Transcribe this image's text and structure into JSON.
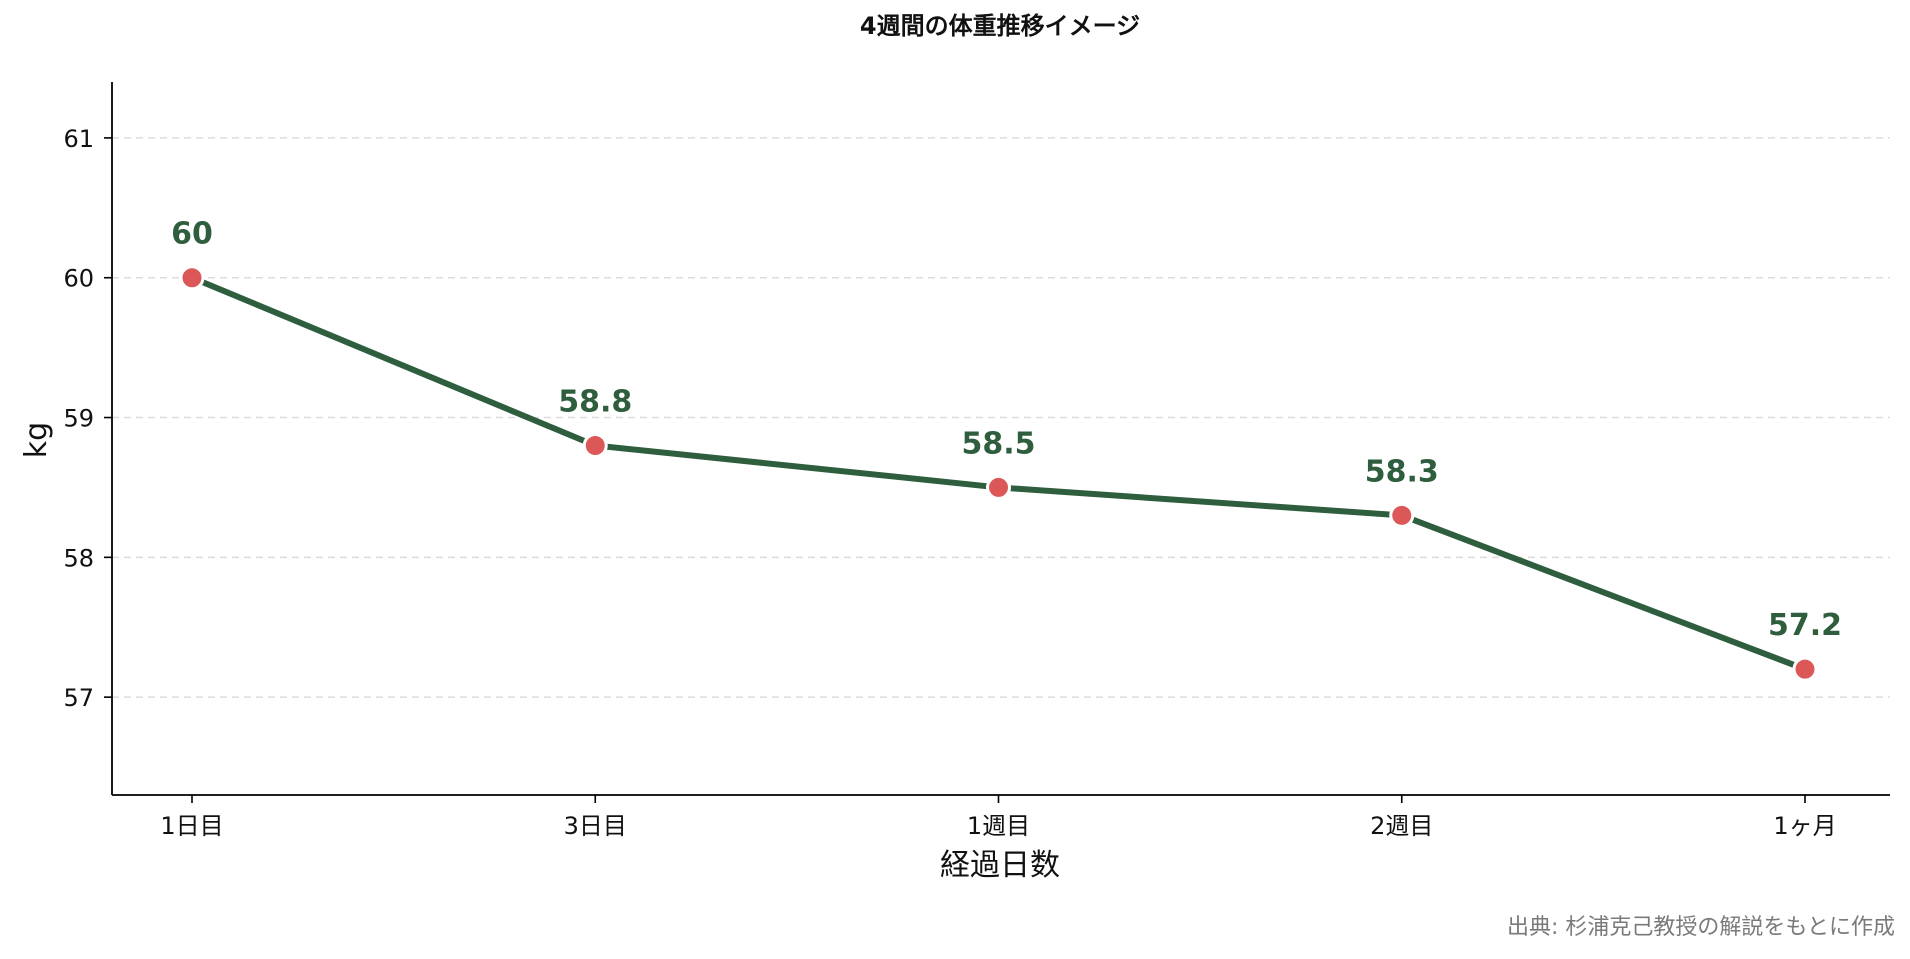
{
  "chart_data": {
    "type": "line",
    "title": "4週間の体重推移イメージ",
    "xlabel": "経過日数",
    "ylabel": "kg",
    "categories": [
      "1日目",
      "3日目",
      "1週目",
      "2週目",
      "1ヶ月"
    ],
    "series": [
      {
        "values": [
          60,
          58.8,
          58.5,
          58.3,
          57.2
        ],
        "labels": [
          "60",
          "58.8",
          "58.5",
          "58.3",
          "57.2"
        ]
      }
    ],
    "yticks": [
      57,
      58,
      59,
      60,
      61
    ],
    "ytick_labels": [
      "57",
      "58",
      "59",
      "60",
      "61"
    ],
    "ylim": [
      56.3,
      61.4
    ],
    "grid": "horizontal-dashed",
    "source_note": "出典: 杉浦克己教授の解説をもとに作成",
    "colors": {
      "line": "#2e5e3e",
      "marker": "#dc5858",
      "marker_edge": "#ffffff",
      "data_label": "#2e5e3e",
      "grid": "#dcdcdc",
      "axis": "#000000",
      "source_note": "#7a7a7a"
    }
  }
}
